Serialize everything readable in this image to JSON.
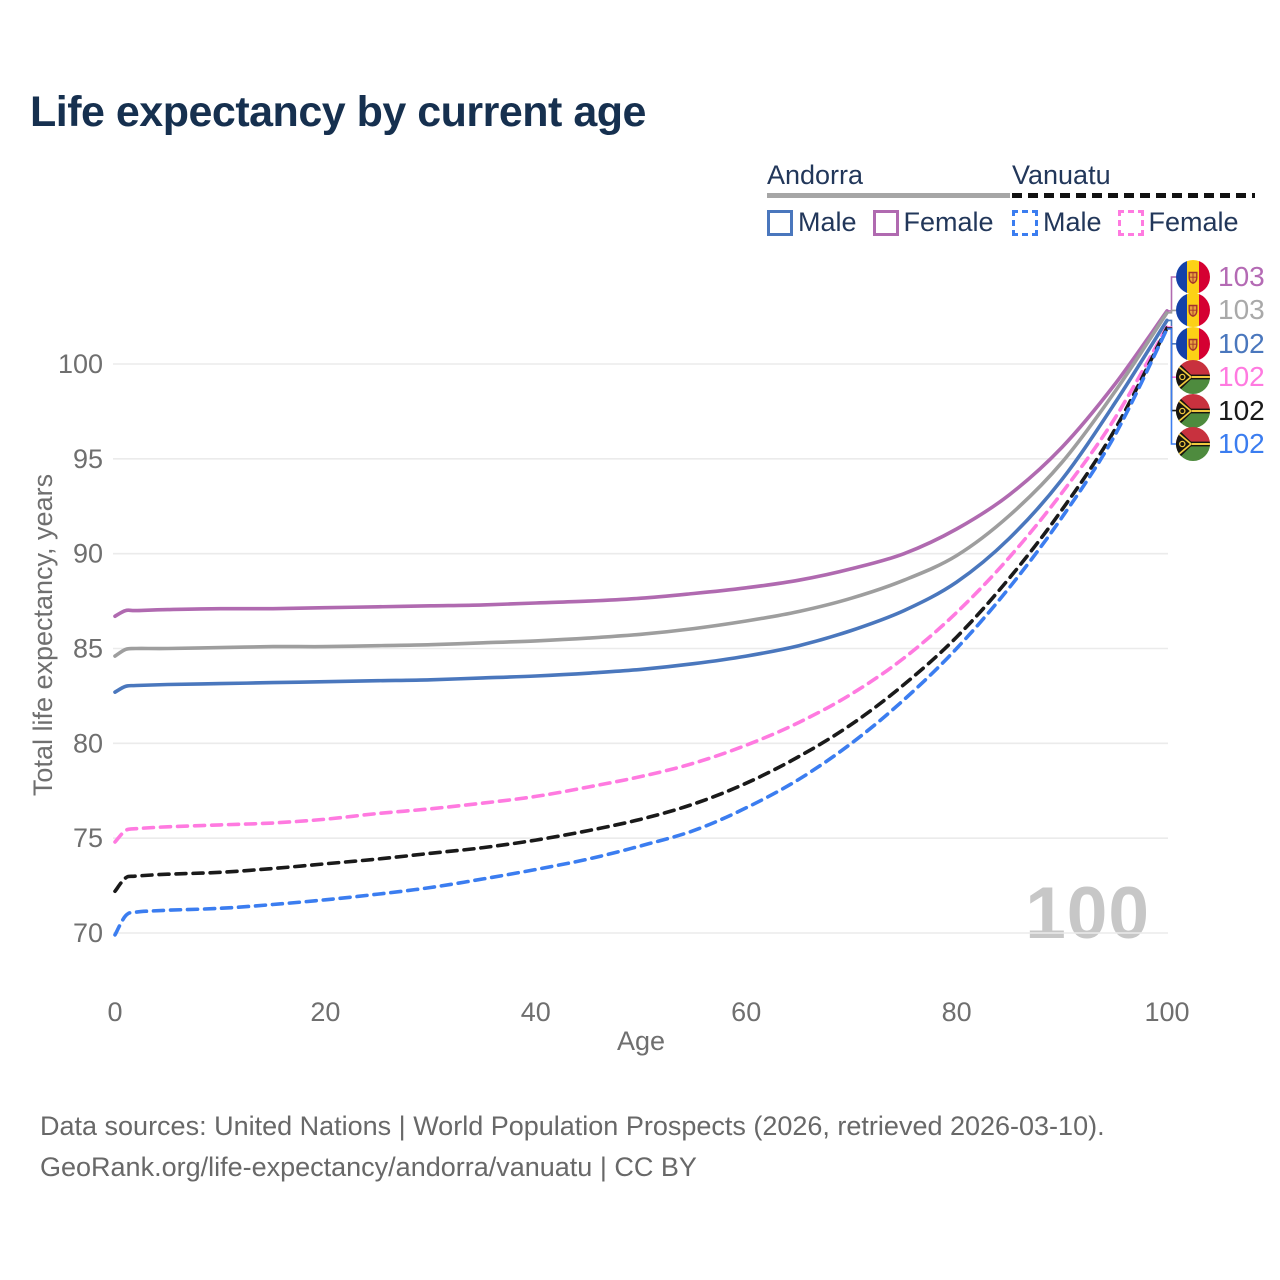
{
  "title": "Life expectancy by current age",
  "watermark": "100",
  "legend": {
    "groups": [
      {
        "name": "Andorra",
        "style": "solid",
        "underline_color": "#a6a6a6",
        "items": [
          {
            "label": "Male",
            "color": "#4a77bd"
          },
          {
            "label": "Female",
            "color": "#b06ab0"
          }
        ]
      },
      {
        "name": "Vanuatu",
        "style": "dashed",
        "underline_color": "#111111",
        "items": [
          {
            "label": "Male",
            "color": "#3b7df0"
          },
          {
            "label": "Female",
            "color": "#ff7ae0"
          }
        ]
      }
    ]
  },
  "chart_data": {
    "type": "line",
    "title": "Life expectancy by current age",
    "xlabel": "Age",
    "ylabel": "Total life expectancy, years",
    "xlim": [
      0,
      100
    ],
    "ylim": [
      70,
      103
    ],
    "x_ticks": [
      0,
      20,
      40,
      60,
      80,
      100
    ],
    "y_ticks": [
      70,
      75,
      80,
      85,
      90,
      95,
      100
    ],
    "grid": "horizontal",
    "legend_position": "top-right",
    "x": [
      0,
      1,
      2,
      5,
      10,
      15,
      20,
      25,
      30,
      35,
      40,
      45,
      50,
      55,
      60,
      65,
      70,
      75,
      80,
      85,
      90,
      95,
      100
    ],
    "series": [
      {
        "id": "andorra-female",
        "name": "Andorra Female",
        "country": "Andorra",
        "sex": "Female",
        "color": "#b06ab0",
        "dashed": false,
        "flag": "andorra",
        "end_value": "103",
        "end_label_color": "#b46ab4",
        "values": [
          86.7,
          87.0,
          87.0,
          87.05,
          87.1,
          87.1,
          87.15,
          87.2,
          87.25,
          87.3,
          87.4,
          87.5,
          87.65,
          87.9,
          88.2,
          88.6,
          89.2,
          90.0,
          91.3,
          93.1,
          95.6,
          98.9,
          102.8
        ]
      },
      {
        "id": "andorra-total",
        "name": "Andorra Both sexes",
        "country": "Andorra",
        "sex": "Both",
        "color": "#9e9e9e",
        "dashed": false,
        "flag": "andorra",
        "end_value": "103",
        "end_label_color": "#a9a9a9",
        "values": [
          84.6,
          84.95,
          85.0,
          85.0,
          85.05,
          85.1,
          85.1,
          85.15,
          85.2,
          85.3,
          85.4,
          85.55,
          85.75,
          86.05,
          86.45,
          86.95,
          87.65,
          88.6,
          89.9,
          92.0,
          94.8,
          98.5,
          102.7
        ]
      },
      {
        "id": "andorra-male",
        "name": "Andorra Male",
        "country": "Andorra",
        "sex": "Male",
        "color": "#4a77bd",
        "dashed": false,
        "flag": "andorra",
        "end_value": "102",
        "end_label_color": "#4a77bd",
        "values": [
          82.7,
          83.0,
          83.05,
          83.1,
          83.15,
          83.2,
          83.25,
          83.3,
          83.35,
          83.45,
          83.55,
          83.7,
          83.9,
          84.2,
          84.6,
          85.15,
          85.95,
          87.0,
          88.5,
          90.8,
          93.9,
          97.9,
          102.3
        ]
      },
      {
        "id": "vanuatu-female",
        "name": "Vanuatu Female",
        "country": "Vanuatu",
        "sex": "Female",
        "color": "#ff7ae0",
        "dashed": true,
        "flag": "vanuatu",
        "end_value": "102",
        "end_label_color": "#ff7ae0",
        "values": [
          74.8,
          75.4,
          75.5,
          75.6,
          75.7,
          75.8,
          76.0,
          76.3,
          76.55,
          76.85,
          77.2,
          77.7,
          78.25,
          78.95,
          79.9,
          81.1,
          82.6,
          84.5,
          86.9,
          89.8,
          93.2,
          97.1,
          101.95
        ]
      },
      {
        "id": "vanuatu-total",
        "name": "Vanuatu Both sexes",
        "country": "Vanuatu",
        "sex": "Both",
        "color": "#1a1a1a",
        "dashed": true,
        "flag": "vanuatu",
        "end_value": "102",
        "end_label_color": "#1a1a1a",
        "values": [
          72.2,
          72.9,
          73.0,
          73.1,
          73.2,
          73.4,
          73.65,
          73.9,
          74.2,
          74.5,
          74.9,
          75.4,
          76.0,
          76.8,
          77.9,
          79.3,
          81.0,
          83.1,
          85.6,
          88.7,
          92.3,
          96.5,
          101.9
        ]
      },
      {
        "id": "vanuatu-male",
        "name": "Vanuatu Male",
        "country": "Vanuatu",
        "sex": "Male",
        "color": "#3b7df0",
        "dashed": true,
        "flag": "vanuatu",
        "end_value": "102",
        "end_label_color": "#3b7df0",
        "values": [
          69.9,
          70.9,
          71.1,
          71.2,
          71.3,
          71.5,
          71.75,
          72.05,
          72.4,
          72.85,
          73.35,
          73.9,
          74.6,
          75.4,
          76.6,
          78.1,
          80.0,
          82.3,
          85.0,
          88.2,
          91.9,
          96.2,
          101.85
        ]
      }
    ]
  },
  "footer": {
    "lines": [
      "Data sources: United Nations | World Population Prospects (2026, retrieved 2026-03-10).",
      "GeoRank.org/life-expectancy/andorra/vanuatu | CC BY"
    ]
  }
}
